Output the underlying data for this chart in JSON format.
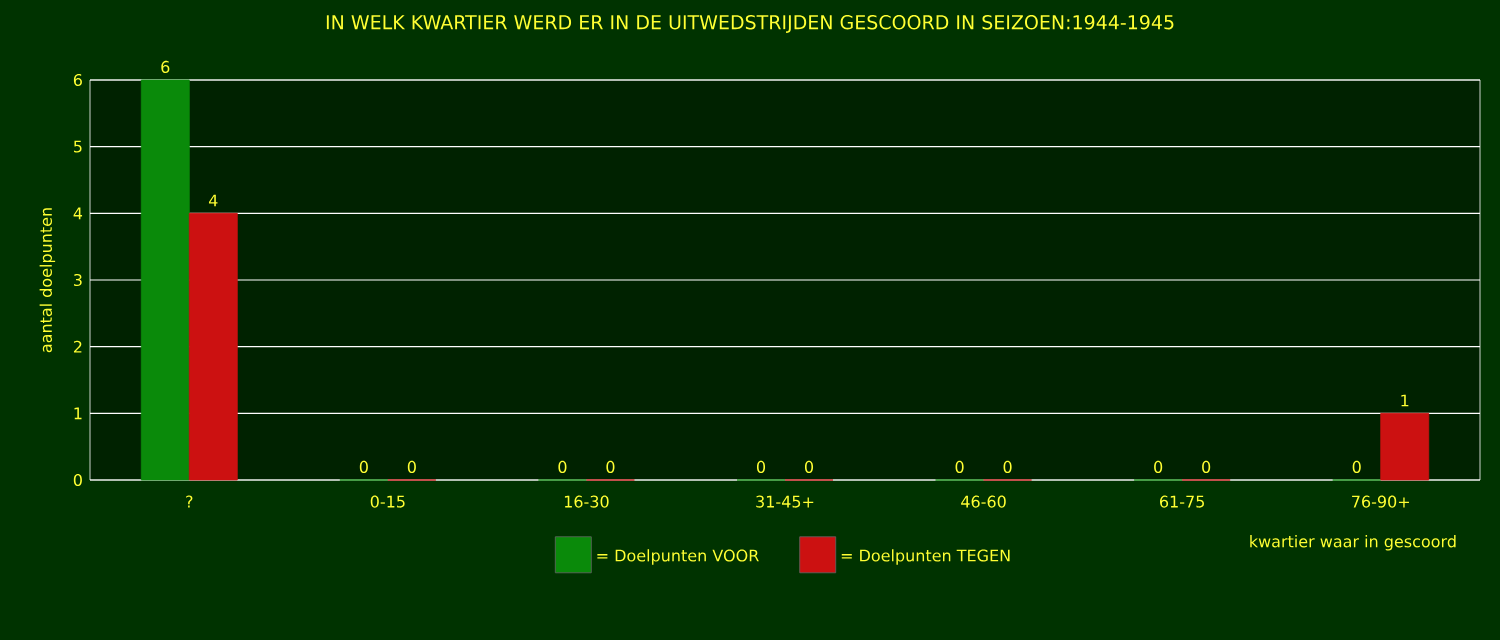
{
  "chart_data": {
    "type": "bar",
    "title": "IN WELK KWARTIER WERD ER IN DE UITWEDSTRIJDEN GESCOORD IN SEIZOEN:1944-1945",
    "xlabel": "kwartier waar in gescoord",
    "ylabel": "aantal doelpunten",
    "categories": [
      "?",
      "0-15",
      "16-30",
      "31-45+",
      "46-60",
      "61-75",
      "76-90+"
    ],
    "series": [
      {
        "name": "= Doelpunten VOOR",
        "color": "#0a8a0a",
        "values": [
          6,
          0,
          0,
          0,
          0,
          0,
          0
        ]
      },
      {
        "name": "= Doelpunten TEGEN",
        "color": "#cc1111",
        "values": [
          4,
          0,
          0,
          0,
          0,
          0,
          1
        ]
      }
    ],
    "ylim": [
      0,
      6
    ],
    "yticks": [
      0,
      1,
      2,
      3,
      4,
      5,
      6
    ],
    "grid": "y",
    "legend": "bottom",
    "data_labels": true
  }
}
